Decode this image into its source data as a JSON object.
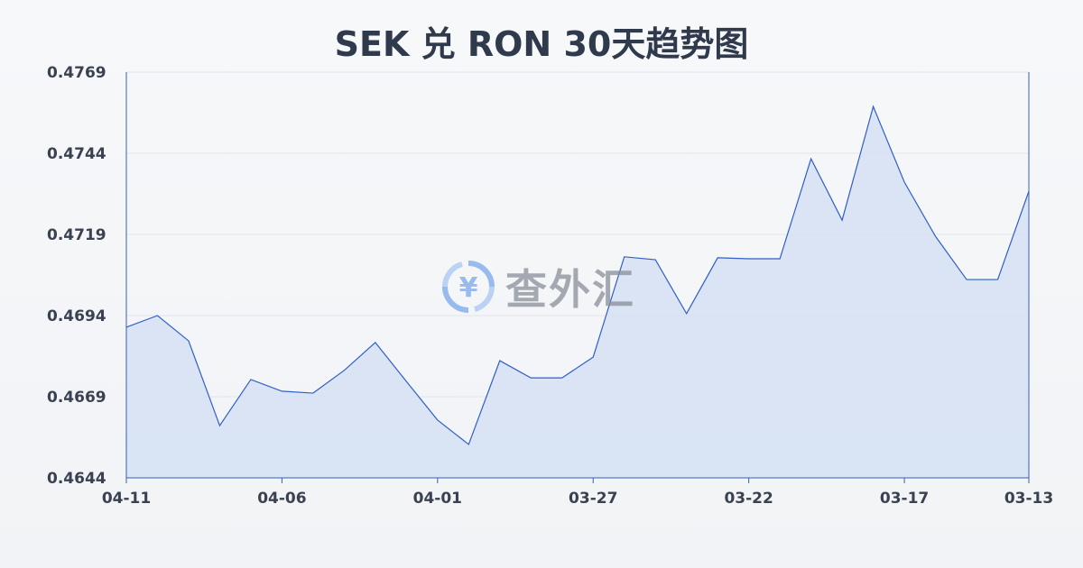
{
  "chart_data": {
    "type": "area",
    "title": "SEK 兑 RON 30天趋势图",
    "xlabel": "",
    "ylabel": "",
    "ylim": [
      0.4644,
      0.4769
    ],
    "yticks": [
      "0.4769",
      "0.4744",
      "0.4719",
      "0.4694",
      "0.4669",
      "0.4644"
    ],
    "xticks": [
      "04-11",
      "04-06",
      "04-01",
      "03-27",
      "03-22",
      "03-17",
      "03-13"
    ],
    "grid": true,
    "line_color": "#2f5fc7",
    "fill_color": "#d5e0f5",
    "x": [
      "04-11",
      "04-10",
      "04-09",
      "04-08",
      "04-07",
      "04-06",
      "04-05",
      "04-04",
      "04-03",
      "04-02",
      "04-01",
      "03-31",
      "03-30",
      "03-29",
      "03-28",
      "03-27",
      "03-26",
      "03-25",
      "03-24",
      "03-23",
      "03-22",
      "03-21",
      "03-20",
      "03-19",
      "03-18",
      "03-17",
      "03-16",
      "03-15",
      "03-14",
      "03-13"
    ],
    "values": [
      0.46904,
      0.4694,
      0.46862,
      0.46601,
      0.46743,
      0.46707,
      0.46701,
      0.46771,
      0.46857,
      0.46737,
      0.46618,
      0.46543,
      0.46801,
      0.46748,
      0.46748,
      0.46812,
      0.47121,
      0.47112,
      0.46946,
      0.47118,
      0.47115,
      0.47115,
      0.47423,
      0.47234,
      0.47584,
      0.47351,
      0.47184,
      0.47051,
      0.47051,
      0.47323
    ]
  },
  "watermark": {
    "text": "查外汇",
    "icon": "yen-exchange-icon"
  }
}
